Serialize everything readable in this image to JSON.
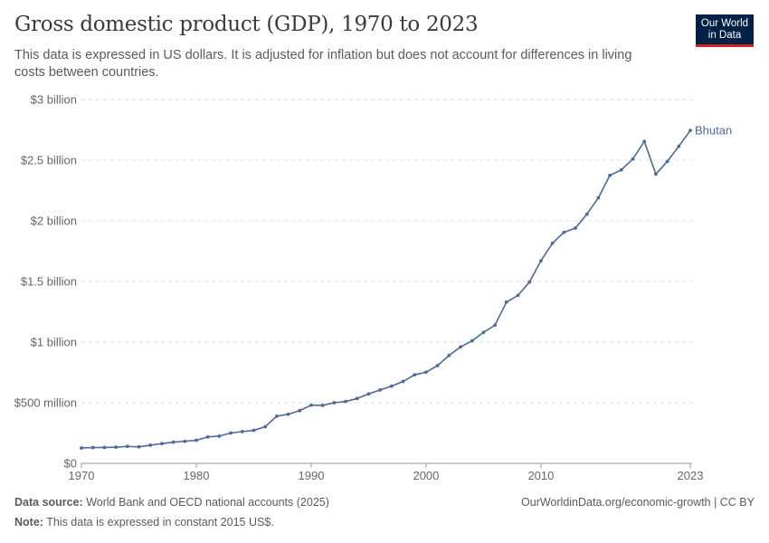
{
  "header": {
    "title": "Gross domestic product (GDP), 1970 to 2023",
    "subtitle": "This data is expressed in US dollars. It is adjusted for inflation but does not account for differences in living costs between countries.",
    "logo": "Our World in Data"
  },
  "footer": {
    "source_label": "Data source:",
    "source": "World Bank and OECD national accounts (2025)",
    "url": "OurWorldinData.org/economic-growth | CC BY",
    "note_label": "Note:",
    "note": "This data is expressed in constant 2015 US$."
  },
  "chart_data": {
    "type": "line",
    "title": "Gross domestic product (GDP), 1970 to 2023",
    "xlim": [
      1970,
      2023
    ],
    "ylim": [
      0,
      3000000000
    ],
    "grid": "horizontal dashed",
    "x_ticks": [
      1970,
      1980,
      1990,
      2000,
      2010,
      2023
    ],
    "y_ticks": [
      {
        "v": 0,
        "label": "$0"
      },
      {
        "v": 500000000,
        "label": "$500 million"
      },
      {
        "v": 1000000000,
        "label": "$1 billion"
      },
      {
        "v": 1500000000,
        "label": "$1.5 billion"
      },
      {
        "v": 2000000000,
        "label": "$2 billion"
      },
      {
        "v": 2500000000,
        "label": "$2.5 billion"
      },
      {
        "v": 3000000000,
        "label": "$3 billion"
      }
    ],
    "colors": {
      "line": "#4C6A9C"
    },
    "series": [
      {
        "name": "Bhutan",
        "x": [
          1970,
          1971,
          1972,
          1973,
          1974,
          1975,
          1976,
          1977,
          1978,
          1979,
          1980,
          1981,
          1982,
          1983,
          1984,
          1985,
          1986,
          1987,
          1988,
          1989,
          1990,
          1991,
          1992,
          1993,
          1994,
          1995,
          1996,
          1997,
          1998,
          1999,
          2000,
          2001,
          2002,
          2003,
          2004,
          2005,
          2006,
          2007,
          2008,
          2009,
          2010,
          2011,
          2012,
          2013,
          2014,
          2015,
          2016,
          2017,
          2018,
          2019,
          2020,
          2021,
          2022,
          2023
        ],
        "values": [
          127000000,
          130000000,
          131000000,
          133000000,
          140000000,
          136000000,
          150000000,
          163000000,
          175000000,
          182000000,
          190000000,
          218000000,
          225000000,
          250000000,
          262000000,
          272000000,
          302000000,
          389000000,
          405000000,
          435000000,
          480000000,
          478000000,
          500000000,
          510000000,
          535000000,
          573000000,
          605000000,
          637000000,
          675000000,
          730000000,
          752000000,
          806000000,
          890000000,
          960000000,
          1010000000,
          1080000000,
          1140000000,
          1330000000,
          1385000000,
          1495000000,
          1670000000,
          1815000000,
          1905000000,
          1940000000,
          2055000000,
          2190000000,
          2375000000,
          2420000000,
          2510000000,
          2655000000,
          2385000000,
          2490000000,
          2615000000,
          2745000000
        ]
      }
    ]
  }
}
